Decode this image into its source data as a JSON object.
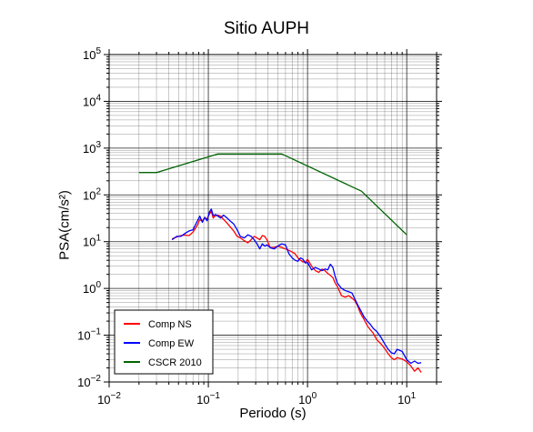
{
  "chart_data": {
    "type": "line",
    "title": "Sitio AUPH",
    "xlabel": "Periodo (s)",
    "ylabel": "PSA(cm/s²)",
    "xscale": "log",
    "yscale": "log",
    "xlim": [
      0.01,
      20
    ],
    "ylim": [
      0.01,
      100000
    ],
    "grid": true,
    "legend": "bottom-left",
    "x_ticks": [
      {
        "base": "10",
        "exp": "−2",
        "value": 0.01
      },
      {
        "base": "10",
        "exp": "−1",
        "value": 0.1
      },
      {
        "base": "10",
        "exp": "0",
        "value": 1
      },
      {
        "base": "10",
        "exp": "1",
        "value": 10
      }
    ],
    "y_ticks": [
      {
        "base": "10",
        "exp": "−2",
        "value": 0.01
      },
      {
        "base": "10",
        "exp": "−1",
        "value": 0.1
      },
      {
        "base": "10",
        "exp": "0",
        "value": 1
      },
      {
        "base": "10",
        "exp": "1",
        "value": 10
      },
      {
        "base": "10",
        "exp": "2",
        "value": 100
      },
      {
        "base": "10",
        "exp": "3",
        "value": 1000
      },
      {
        "base": "10",
        "exp": "4",
        "value": 10000
      },
      {
        "base": "10",
        "exp": "5",
        "value": 100000
      }
    ],
    "series": [
      {
        "name": "Comp NS",
        "color": "#ff0000",
        "points": [
          [
            0.043,
            11.5
          ],
          [
            0.048,
            12.5
          ],
          [
            0.053,
            13.5
          ],
          [
            0.058,
            13.8
          ],
          [
            0.064,
            13.5
          ],
          [
            0.07,
            16
          ],
          [
            0.077,
            22
          ],
          [
            0.082,
            30
          ],
          [
            0.087,
            27
          ],
          [
            0.092,
            33
          ],
          [
            0.097,
            30
          ],
          [
            0.102,
            38
          ],
          [
            0.107,
            45
          ],
          [
            0.112,
            32
          ],
          [
            0.118,
            36
          ],
          [
            0.125,
            37
          ],
          [
            0.133,
            35
          ],
          [
            0.142,
            30
          ],
          [
            0.152,
            26
          ],
          [
            0.165,
            21
          ],
          [
            0.18,
            17
          ],
          [
            0.195,
            13
          ],
          [
            0.21,
            12
          ],
          [
            0.23,
            10.5
          ],
          [
            0.25,
            9.5
          ],
          [
            0.27,
            11
          ],
          [
            0.29,
            13
          ],
          [
            0.31,
            12
          ],
          [
            0.33,
            11
          ],
          [
            0.35,
            13.5
          ],
          [
            0.37,
            13
          ],
          [
            0.39,
            11
          ],
          [
            0.42,
            7.5
          ],
          [
            0.46,
            7.5
          ],
          [
            0.5,
            8
          ],
          [
            0.55,
            7.5
          ],
          [
            0.6,
            7
          ],
          [
            0.65,
            6.5
          ],
          [
            0.7,
            6
          ],
          [
            0.75,
            5.5
          ],
          [
            0.8,
            4.5
          ],
          [
            0.85,
            4
          ],
          [
            0.9,
            3.7
          ],
          [
            0.95,
            3.6
          ],
          [
            1.0,
            4.2
          ],
          [
            1.1,
            3
          ],
          [
            1.2,
            2.4
          ],
          [
            1.3,
            2.2
          ],
          [
            1.4,
            2.6
          ],
          [
            1.5,
            2.4
          ],
          [
            1.6,
            2.1
          ],
          [
            1.7,
            1.9
          ],
          [
            1.8,
            1.7
          ],
          [
            1.9,
            1.3
          ],
          [
            2.0,
            1.1
          ],
          [
            2.2,
            0.7
          ],
          [
            2.4,
            0.65
          ],
          [
            2.6,
            0.7
          ],
          [
            2.8,
            0.62
          ],
          [
            3.0,
            0.55
          ],
          [
            3.2,
            0.42
          ],
          [
            3.4,
            0.3
          ],
          [
            3.7,
            0.22
          ],
          [
            4.0,
            0.16
          ],
          [
            4.3,
            0.13
          ],
          [
            4.6,
            0.11
          ],
          [
            5.0,
            0.08
          ],
          [
            5.5,
            0.065
          ],
          [
            6.0,
            0.052
          ],
          [
            6.5,
            0.04
          ],
          [
            7.0,
            0.033
          ],
          [
            7.5,
            0.03
          ],
          [
            8.0,
            0.033
          ],
          [
            9.0,
            0.031
          ],
          [
            10.0,
            0.027
          ],
          [
            11.0,
            0.022
          ],
          [
            12.0,
            0.017
          ],
          [
            13.0,
            0.02
          ],
          [
            14.0,
            0.016
          ]
        ]
      },
      {
        "name": "Comp EW",
        "color": "#0000ff",
        "points": [
          [
            0.043,
            11
          ],
          [
            0.048,
            13
          ],
          [
            0.053,
            13
          ],
          [
            0.058,
            15
          ],
          [
            0.064,
            17
          ],
          [
            0.07,
            18
          ],
          [
            0.077,
            27
          ],
          [
            0.082,
            35
          ],
          [
            0.087,
            26
          ],
          [
            0.092,
            33
          ],
          [
            0.097,
            28
          ],
          [
            0.102,
            42
          ],
          [
            0.107,
            50
          ],
          [
            0.112,
            36
          ],
          [
            0.118,
            38
          ],
          [
            0.125,
            35
          ],
          [
            0.133,
            32
          ],
          [
            0.142,
            37
          ],
          [
            0.152,
            33
          ],
          [
            0.165,
            28
          ],
          [
            0.18,
            24
          ],
          [
            0.195,
            18
          ],
          [
            0.21,
            13
          ],
          [
            0.23,
            12
          ],
          [
            0.25,
            14
          ],
          [
            0.27,
            13
          ],
          [
            0.29,
            11
          ],
          [
            0.31,
            9
          ],
          [
            0.33,
            7
          ],
          [
            0.35,
            9
          ],
          [
            0.37,
            8
          ],
          [
            0.39,
            8.5
          ],
          [
            0.42,
            7.5
          ],
          [
            0.46,
            7
          ],
          [
            0.5,
            8
          ],
          [
            0.55,
            9
          ],
          [
            0.6,
            8.5
          ],
          [
            0.65,
            5.5
          ],
          [
            0.7,
            4.5
          ],
          [
            0.75,
            4
          ],
          [
            0.8,
            3.8
          ],
          [
            0.85,
            4.5
          ],
          [
            0.9,
            4.2
          ],
          [
            0.95,
            3.5
          ],
          [
            1.0,
            3.6
          ],
          [
            1.1,
            2.5
          ],
          [
            1.2,
            2.8
          ],
          [
            1.3,
            2.6
          ],
          [
            1.4,
            2.4
          ],
          [
            1.5,
            2.6
          ],
          [
            1.6,
            2.5
          ],
          [
            1.7,
            3.3
          ],
          [
            1.8,
            2.8
          ],
          [
            1.9,
            1.8
          ],
          [
            2.0,
            1.3
          ],
          [
            2.2,
            1.0
          ],
          [
            2.4,
            0.9
          ],
          [
            2.6,
            0.85
          ],
          [
            2.8,
            0.8
          ],
          [
            3.0,
            0.6
          ],
          [
            3.2,
            0.45
          ],
          [
            3.4,
            0.35
          ],
          [
            3.7,
            0.25
          ],
          [
            4.0,
            0.2
          ],
          [
            4.3,
            0.17
          ],
          [
            4.6,
            0.14
          ],
          [
            5.0,
            0.12
          ],
          [
            5.5,
            0.09
          ],
          [
            6.0,
            0.065
          ],
          [
            6.5,
            0.05
          ],
          [
            7.0,
            0.042
          ],
          [
            7.5,
            0.04
          ],
          [
            8.0,
            0.05
          ],
          [
            9.0,
            0.045
          ],
          [
            10.0,
            0.03
          ],
          [
            11.0,
            0.025
          ],
          [
            12.0,
            0.028
          ],
          [
            13.0,
            0.025
          ],
          [
            14.0,
            0.026
          ]
        ]
      },
      {
        "name": "CSCR 2010",
        "color": "#006400",
        "points": [
          [
            0.02,
            300
          ],
          [
            0.03,
            300
          ],
          [
            0.125,
            750
          ],
          [
            0.55,
            750
          ],
          [
            3.5,
            120
          ],
          [
            10.0,
            14
          ]
        ]
      }
    ]
  }
}
